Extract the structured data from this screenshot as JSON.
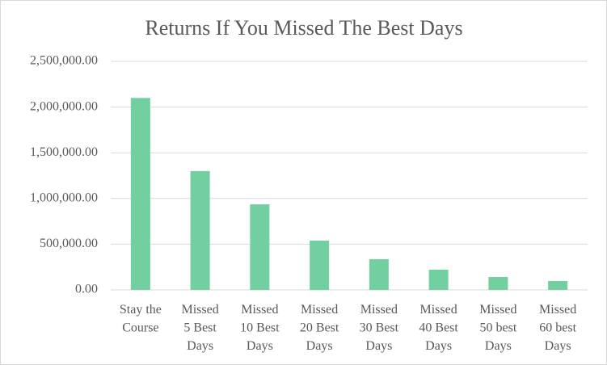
{
  "chart_data": {
    "type": "bar",
    "title": "Returns If You Missed The Best Days",
    "categories": [
      [
        "Stay the",
        "Course"
      ],
      [
        "Missed",
        "5 Best",
        "Days"
      ],
      [
        "Missed",
        "10 Best",
        "Days"
      ],
      [
        "Missed",
        "20 Best",
        "Days"
      ],
      [
        "Missed",
        "30 Best",
        "Days"
      ],
      [
        "Missed",
        "40 Best",
        "Days"
      ],
      [
        "Missed",
        "50 best",
        "Days"
      ],
      [
        "Missed",
        "60 best",
        "Days"
      ]
    ],
    "values": [
      2100000,
      1300000,
      936000,
      539000,
      336000,
      221000,
      141000,
      97000
    ],
    "color": "#72cf9f",
    "ylim": [
      0,
      2500000
    ],
    "yticks": [
      {
        "value": 0,
        "label": "0.00"
      },
      {
        "value": 500000,
        "label": "500,000.00"
      },
      {
        "value": 1000000,
        "label": "1,000,000.00"
      },
      {
        "value": 1500000,
        "label": "1,500,000.00"
      },
      {
        "value": 2000000,
        "label": "2,000,000.00"
      },
      {
        "value": 2500000,
        "label": "2,500,000.00"
      }
    ],
    "grid": true
  }
}
